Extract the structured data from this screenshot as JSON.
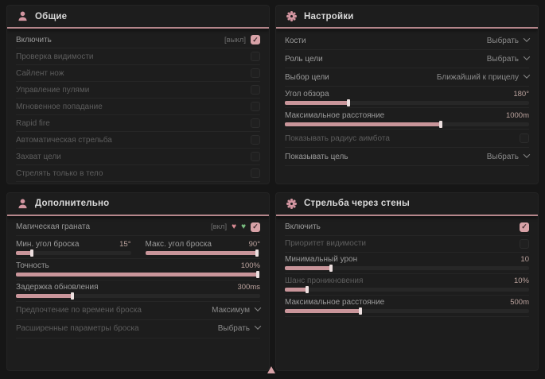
{
  "colors": {
    "accent": "#d8a2a7",
    "green": "#79bd80",
    "panel": "#1d1d1d",
    "background": "#161616"
  },
  "panels": {
    "general": {
      "title": "Общие",
      "rows": {
        "enable": {
          "label": "Включить",
          "bind": "[выкл]",
          "checked": true
        },
        "visibility_check": {
          "label": "Проверка видимости",
          "checked": false
        },
        "silent_knife": {
          "label": "Сайлент нож",
          "checked": false
        },
        "bullet_control": {
          "label": "Управление пулями",
          "checked": false
        },
        "instant_hit": {
          "label": "Мгновенное попадание",
          "checked": false
        },
        "rapid_fire": {
          "label": "Rapid fire",
          "checked": false
        },
        "auto_fire": {
          "label": "Автоматическая стрельба",
          "checked": false
        },
        "target_lock": {
          "label": "Захват цели",
          "checked": false
        },
        "body_only": {
          "label": "Стрелять только в тело",
          "checked": false
        }
      }
    },
    "settings": {
      "title": "Настройки",
      "rows": {
        "bones": {
          "label": "Кости",
          "value": "Выбрать"
        },
        "target_role": {
          "label": "Роль цели",
          "value": "Выбрать"
        },
        "target_select": {
          "label": "Выбор цели",
          "value": "Ближайший к прицелу"
        },
        "fov": {
          "label": "Угол обзора",
          "value": "180°",
          "fill": 26
        },
        "max_distance": {
          "label": "Максимальное расстояние",
          "value": "1000m",
          "fill": 64
        },
        "show_radius": {
          "label": "Показывать радиус аимбота",
          "checked": false
        },
        "show_target": {
          "label": "Показывать цель",
          "value": "Выбрать"
        }
      }
    },
    "additional": {
      "title": "Дополнительно",
      "rows": {
        "magic_grenade": {
          "label": "Магическая граната",
          "bind": "[вкл]",
          "checked": true,
          "icons": [
            "heart-pink-icon",
            "heart-green-icon"
          ]
        },
        "min_angle": {
          "label": "Мин. угол броска",
          "value": "15°",
          "fill": 14
        },
        "max_angle": {
          "label": "Макс. угол броска",
          "value": "90°",
          "fill": 97
        },
        "accuracy": {
          "label": "Точность",
          "value": "100%",
          "fill": 99
        },
        "update_delay": {
          "label": "Задержка обновления",
          "value": "300ms",
          "fill": 23
        },
        "throw_time_pref": {
          "label": "Предпочтение по времени броска",
          "value": "Максимум"
        },
        "advanced_throw": {
          "label": "Расширенные параметры броска",
          "value": "Выбрать"
        }
      }
    },
    "wallbang": {
      "title": "Стрельба через стены",
      "rows": {
        "enable": {
          "label": "Включить",
          "checked": true
        },
        "visibility_priority": {
          "label": "Приоритет видимости",
          "checked": false
        },
        "min_damage": {
          "label": "Минимальный урон",
          "value": "10",
          "fill": 19
        },
        "penetration_chance": {
          "label": "Шанс проникновения",
          "value": "10%",
          "fill": 9
        },
        "max_distance": {
          "label": "Максимальное расстояние",
          "value": "500m",
          "fill": 31
        }
      }
    }
  },
  "hearts": {
    "pink": "♥",
    "green": "♥"
  }
}
